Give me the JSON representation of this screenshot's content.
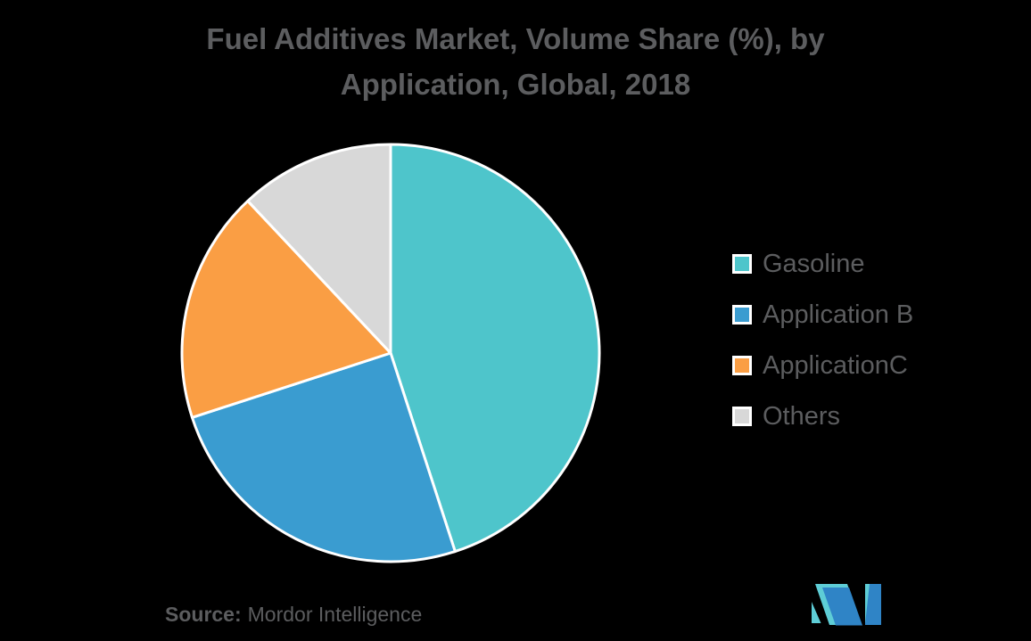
{
  "header": {
    "line1": "Fuel Additives Market, Volume Share (%), by",
    "line2": "Application, Global, 2018"
  },
  "chart_data": {
    "type": "pie",
    "title": "Fuel Additives Market, Volume Share (%), by Application, Global, 2018",
    "series": [
      {
        "label": "Gasoline",
        "value": 45,
        "color": "#4ec5cb"
      },
      {
        "label": "Application B",
        "value": 25,
        "color": "#3a9cd0"
      },
      {
        "label": "ApplicationC",
        "value": 18,
        "color": "#fa9e44"
      },
      {
        "label": "Others",
        "value": 12,
        "color": "#d8d8d8"
      }
    ],
    "start_angle_deg": 0,
    "direction": "clockwise",
    "legend_position": "right",
    "data_labels": false,
    "slice_border_color": "#ffffff",
    "background": "#000000",
    "text_color": "#5c5d5f"
  },
  "source": {
    "prefix": "Source:",
    "text": "Mordor Intelligence"
  },
  "logo": {
    "name": "mordor-intelligence-logo",
    "teal": "#5ecdd6",
    "blue": "#2f84c6"
  }
}
